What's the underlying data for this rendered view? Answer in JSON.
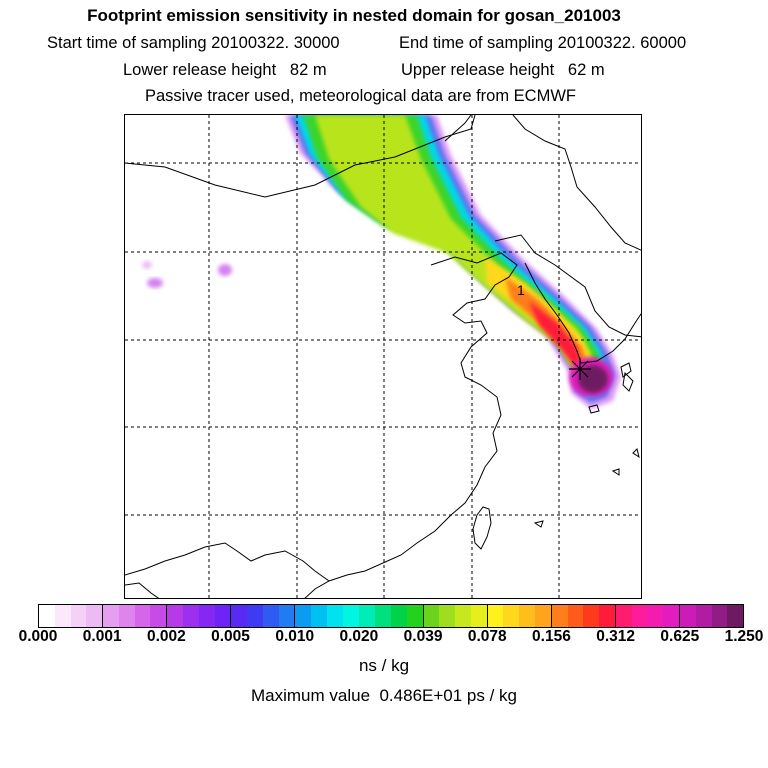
{
  "header": {
    "title": "Footprint emission sensitivity in nested domain for gosan_201003",
    "start_label": "Start time of sampling 20100322. 30000",
    "end_label": "End time of sampling 20100322. 60000",
    "lower_label": "Lower release height   82 m",
    "upper_label": "Upper release height   62 m",
    "tracer_label": "Passive tracer used, meteorological data are from ECMWF"
  },
  "map": {
    "marker_label": "1"
  },
  "colorbar": {
    "ticks": [
      "0.000",
      "0.001",
      "0.002",
      "0.005",
      "0.010",
      "0.020",
      "0.039",
      "0.078",
      "0.156",
      "0.312",
      "0.625",
      "1.250"
    ],
    "segment_colors": [
      [
        "#ffffff",
        "#fbe9fb",
        "#f4d2f7",
        "#eebaf3"
      ],
      [
        "#e59ef0",
        "#de84ec",
        "#d566ea",
        "#c84be8"
      ],
      [
        "#b63ae6",
        "#9c2ff0",
        "#8628f4",
        "#6f24f6"
      ],
      [
        "#5a2af5",
        "#3e3cf2",
        "#2e5cf2",
        "#1f7cf2"
      ],
      [
        "#0b9cf2",
        "#00c0f2",
        "#00e2f0",
        "#00f6e0"
      ],
      [
        "#00ecb6",
        "#00e07e",
        "#00d24a",
        "#22d21c"
      ],
      [
        "#6ad41c",
        "#9ede1c",
        "#c6e81c",
        "#e6ee1c"
      ],
      [
        "#fff21c",
        "#ffd81c",
        "#ffbe1c",
        "#ffa41c"
      ],
      [
        "#ff7e1c",
        "#ff5c1c",
        "#ff3a1c",
        "#ff1c3a"
      ],
      [
        "#ff1c6e",
        "#ff1c9a",
        "#f41cb0",
        "#e21cbe"
      ],
      [
        "#cc1cb8",
        "#b01ca4",
        "#901c86",
        "#6e1a62"
      ]
    ],
    "units": "ns / kg",
    "max_label": "Maximum value  0.486E+01 ps / kg"
  }
}
